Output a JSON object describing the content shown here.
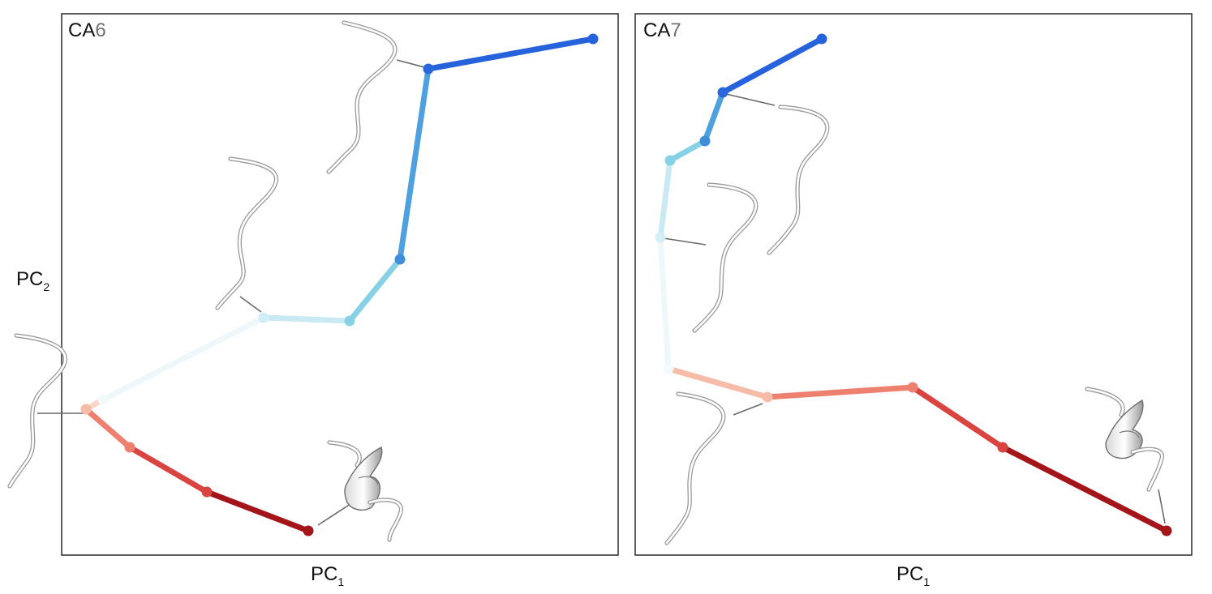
{
  "panels": [
    {
      "title_prefix": "CA",
      "title_number": "6",
      "xlabel_main": "PC",
      "xlabel_sub": "1",
      "ylabel_main": "PC",
      "ylabel_sub": "2",
      "path_colors": [
        "#f3fafc",
        "#d9eff6",
        "#c9e9f3",
        "#87d1e6",
        "#4ea1de",
        "#2662dc"
      ],
      "red_colors": [
        "#f6bca8",
        "#ee8070",
        "#d94440",
        "#a4151a"
      ]
    },
    {
      "title_prefix": "CA",
      "title_number": "7",
      "xlabel_main": "PC",
      "xlabel_sub": "1",
      "path_colors": [
        "#f3fafc",
        "#d9eff6",
        "#c9e9f3",
        "#87d1e6",
        "#4ea1de",
        "#2662dc"
      ],
      "red_colors": [
        "#f6bca8",
        "#ee8070",
        "#d94440",
        "#a4151a"
      ]
    }
  ]
}
